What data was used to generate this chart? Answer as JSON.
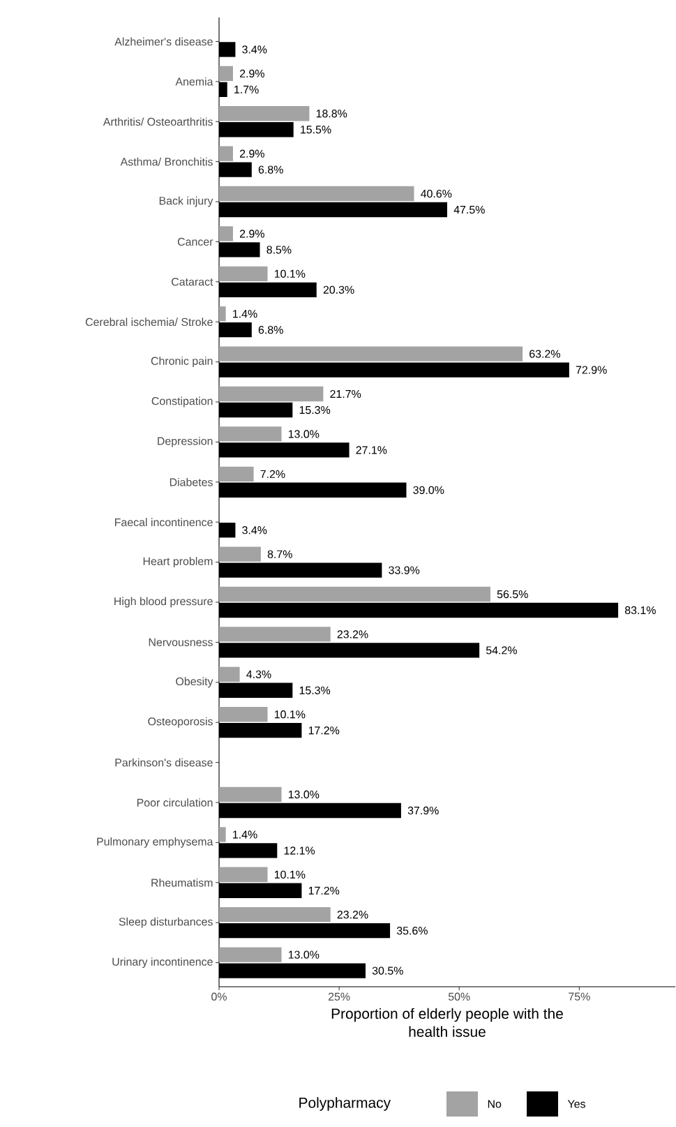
{
  "chart_data": {
    "type": "bar",
    "orientation": "horizontal",
    "categories": [
      "Alzheimer's disease",
      "Anemia",
      "Arthritis/ Osteoarthritis",
      "Asthma/ Bronchitis",
      "Back injury",
      "Cancer",
      "Cataract",
      "Cerebral ischemia/ Stroke",
      "Chronic pain",
      "Constipation",
      "Depression",
      "Diabetes",
      "Faecal incontinence",
      "Heart problem",
      "High blood pressure",
      "Nervousness",
      "Obesity",
      "Osteoporosis",
      "Parkinson's disease",
      "Poor circulation",
      "Pulmonary emphysema",
      "Rheumatism",
      "Sleep disturbances",
      "Urinary incontinence"
    ],
    "series": [
      {
        "name": "No",
        "color": "#a3a3a3",
        "values": [
          null,
          2.9,
          18.8,
          2.9,
          40.6,
          2.9,
          10.1,
          1.4,
          63.2,
          21.7,
          13.0,
          7.2,
          null,
          8.7,
          56.5,
          23.2,
          4.3,
          10.1,
          null,
          13.0,
          1.4,
          10.1,
          23.2,
          13.0
        ],
        "value_labels": [
          null,
          "2.9%",
          "18.8%",
          "2.9%",
          "40.6%",
          "2.9%",
          "10.1%",
          "1.4%",
          "63.2%",
          "21.7%",
          "13.0%",
          "7.2%",
          null,
          "8.7%",
          "56.5%",
          "23.2%",
          "4.3%",
          "10.1%",
          null,
          "13.0%",
          "1.4%",
          "10.1%",
          "23.2%",
          "13.0%"
        ]
      },
      {
        "name": "Yes",
        "color": "#000000",
        "values": [
          3.4,
          1.7,
          15.5,
          6.8,
          47.5,
          8.5,
          20.3,
          6.8,
          72.9,
          15.3,
          27.1,
          39.0,
          3.4,
          33.9,
          83.1,
          54.2,
          15.3,
          17.2,
          null,
          37.9,
          12.1,
          17.2,
          35.6,
          30.5
        ],
        "value_labels": [
          "3.4%",
          "1.7%",
          "15.5%",
          "6.8%",
          "47.5%",
          "8.5%",
          "20.3%",
          "6.8%",
          "72.9%",
          "15.3%",
          "27.1%",
          "39.0%",
          "3.4%",
          "33.9%",
          "83.1%",
          "54.2%",
          "15.3%",
          "17.2%",
          null,
          "37.9%",
          "12.1%",
          "17.2%",
          "35.6%",
          "30.5%"
        ]
      }
    ],
    "xlim": [
      0,
      95
    ],
    "xticks": [
      {
        "value": 0,
        "label": "0%"
      },
      {
        "value": 25,
        "label": "25%"
      },
      {
        "value": 50,
        "label": "50%"
      },
      {
        "value": 75,
        "label": "75%"
      }
    ],
    "xlabel": "Proportion of elderly people with the health issue",
    "legend_title": "Polypharmacy",
    "legend": "bottom",
    "grid": false
  }
}
